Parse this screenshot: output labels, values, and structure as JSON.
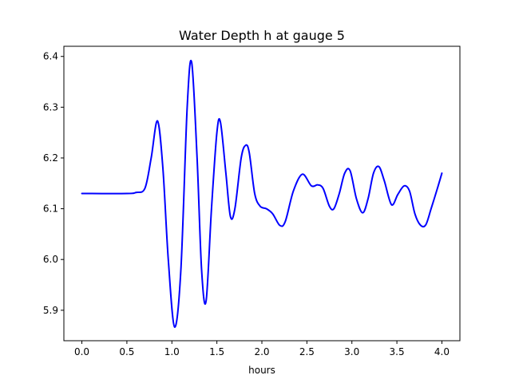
{
  "chart_data": {
    "type": "line",
    "title": "Water Depth h at gauge 5",
    "xlabel": "hours",
    "ylabel": "",
    "xlim": [
      -0.2,
      4.2
    ],
    "ylim": [
      5.84,
      6.42
    ],
    "xticks": [
      0.0,
      0.5,
      1.0,
      1.5,
      2.0,
      2.5,
      3.0,
      3.5,
      4.0
    ],
    "xtick_labels": [
      "0.0",
      "0.5",
      "1.0",
      "1.5",
      "2.0",
      "2.5",
      "3.0",
      "3.5",
      "4.0"
    ],
    "yticks": [
      5.9,
      6.0,
      6.1,
      6.2,
      6.3,
      6.4
    ],
    "ytick_labels": [
      "5.9",
      "6.0",
      "6.1",
      "6.2",
      "6.3",
      "6.4"
    ],
    "grid": false,
    "series": [
      {
        "color": "#0000ff",
        "x": [
          0.0,
          0.5,
          0.6,
          0.7,
          0.77,
          0.84,
          0.9,
          0.96,
          1.03,
          1.1,
          1.17,
          1.22,
          1.28,
          1.33,
          1.38,
          1.44,
          1.5,
          1.54,
          1.6,
          1.65,
          1.7,
          1.77,
          1.82,
          1.86,
          1.92,
          1.98,
          2.05,
          2.12,
          2.2,
          2.26,
          2.35,
          2.45,
          2.55,
          2.62,
          2.68,
          2.75,
          2.8,
          2.86,
          2.92,
          2.98,
          3.05,
          3.12,
          3.18,
          3.24,
          3.3,
          3.36,
          3.44,
          3.51,
          3.58,
          3.64,
          3.7,
          3.76,
          3.82,
          3.88,
          3.95,
          4.0
        ],
        "y": [
          6.13,
          6.13,
          6.132,
          6.14,
          6.2,
          6.273,
          6.18,
          6.0,
          5.867,
          5.98,
          6.3,
          6.388,
          6.2,
          5.98,
          5.918,
          6.1,
          6.25,
          6.27,
          6.17,
          6.085,
          6.1,
          6.2,
          6.225,
          6.21,
          6.13,
          6.105,
          6.1,
          6.09,
          6.067,
          6.075,
          6.135,
          6.168,
          6.145,
          6.147,
          6.14,
          6.105,
          6.1,
          6.13,
          6.17,
          6.175,
          6.12,
          6.092,
          6.12,
          6.17,
          6.183,
          6.155,
          6.108,
          6.128,
          6.145,
          6.135,
          6.09,
          6.068,
          6.068,
          6.1,
          6.14,
          6.17
        ]
      }
    ]
  }
}
